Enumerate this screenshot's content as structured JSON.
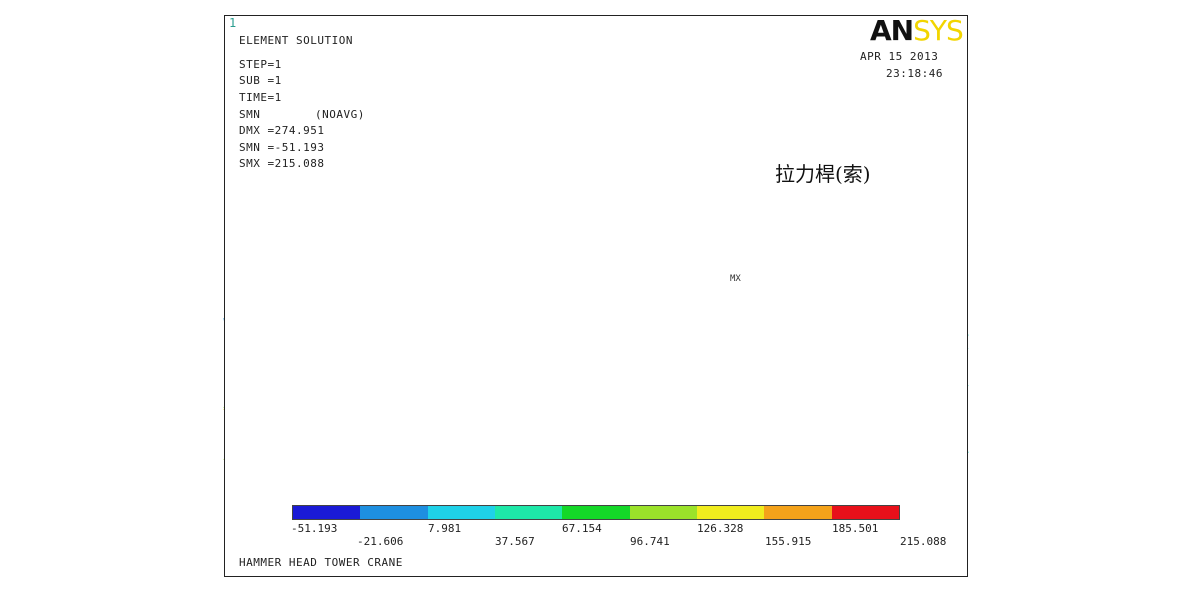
{
  "header": {
    "frame_number": "1",
    "title": "ELEMENT SOLUTION",
    "lines": [
      "STEP=1",
      "SUB =1",
      "TIME=1",
      "SMN",
      "DMX =274.951",
      "SMN =-51.193",
      "SMX =215.088"
    ],
    "smis_label": "(NOAVG)",
    "date": "APR 15 2013",
    "time": "23:18:46"
  },
  "logo": {
    "left": "AN",
    "right": "SYS"
  },
  "callout": {
    "label": "拉力桿(索)"
  },
  "mx_marker": "MX",
  "legend": {
    "colors": [
      "#1a1ad6",
      "#1e8fe0",
      "#1fd1e8",
      "#1ee8a8",
      "#14d828",
      "#9be22a",
      "#f0ec1e",
      "#f4a21a",
      "#e8101a"
    ],
    "top_labels": [
      "-51.193",
      "7.981",
      "67.154",
      "126.328",
      "185.501"
    ],
    "bottom_labels": [
      "-21.606",
      "37.567",
      "96.741",
      "155.915",
      "215.088"
    ]
  },
  "footer": {
    "title": "HAMMER HEAD TOWER CRANE"
  },
  "diagram": {
    "members": [
      {
        "p": [
          224,
          295,
          281,
          295
        ],
        "c": "#40e0d0"
      },
      {
        "p": [
          281,
          295,
          412,
          292
        ],
        "c": "#40e0d0"
      },
      {
        "p": [
          412,
          292,
          548,
          289
        ],
        "c": "#40e0d0"
      },
      {
        "p": [
          548,
          289,
          648,
          287
        ],
        "c": "#40e0d0"
      },
      {
        "p": [
          648,
          287,
          820,
          284
        ],
        "c": "#e8101a"
      },
      {
        "p": [
          820,
          284,
          968,
          283
        ],
        "c": "#40e0d0"
      },
      {
        "p": [
          820,
          284,
          968,
          245
        ],
        "c": "#40e0d0"
      },
      {
        "p": [
          224,
          386,
          968,
          373
        ],
        "c": "#3838c8"
      },
      {
        "p": [
          224,
          466,
          968,
          453
        ],
        "c": "#3838c8"
      },
      {
        "p": [
          224,
          318,
          238,
          384
        ],
        "c": "#3aa0e0"
      },
      {
        "p": [
          224,
          408,
          238,
          384
        ],
        "c": "#9be22a"
      },
      {
        "p": [
          224,
          460,
          268,
          384
        ],
        "c": "#9be22a"
      },
      {
        "p": [
          268,
          384,
          281,
          295
        ],
        "c": "#40e0d0"
      },
      {
        "p": [
          281,
          295,
          224,
          410
        ],
        "c": "#f0e01e"
      },
      {
        "p": [
          281,
          295,
          356,
          462
        ],
        "c": "#40e0d0"
      },
      {
        "p": [
          268,
          384,
          356,
          462
        ],
        "c": "#40e0d0"
      },
      {
        "p": [
          356,
          462,
          412,
          292
        ],
        "c": "#f0e01e"
      },
      {
        "p": [
          412,
          292,
          404,
          381
        ],
        "c": "#40e0d0"
      },
      {
        "p": [
          404,
          381,
          356,
          462
        ],
        "c": "#40e0d0"
      },
      {
        "p": [
          404,
          381,
          281,
          295
        ],
        "c": "#3aa0e0"
      },
      {
        "p": [
          412,
          292,
          490,
          460
        ],
        "c": "#40e0d0"
      },
      {
        "p": [
          404,
          381,
          490,
          460
        ],
        "c": "#40e0d0"
      },
      {
        "p": [
          490,
          460,
          548,
          289
        ],
        "c": "#f0e01e"
      },
      {
        "p": [
          548,
          289,
          538,
          379
        ],
        "c": "#40e0d0"
      },
      {
        "p": [
          538,
          379,
          490,
          460
        ],
        "c": "#40e0d0"
      },
      {
        "p": [
          538,
          379,
          412,
          292
        ],
        "c": "#3aa0e0"
      },
      {
        "p": [
          548,
          289,
          625,
          457
        ],
        "c": "#40e0d0"
      },
      {
        "p": [
          538,
          379,
          625,
          457
        ],
        "c": "#40e0d0"
      },
      {
        "p": [
          625,
          457,
          648,
          287
        ],
        "c": "#f0e01e"
      },
      {
        "p": [
          648,
          287,
          672,
          376
        ],
        "c": "#40e0d0"
      },
      {
        "p": [
          672,
          376,
          625,
          457
        ],
        "c": "#40e0d0"
      },
      {
        "p": [
          672,
          376,
          548,
          289
        ],
        "c": "#3aa0e0"
      },
      {
        "p": [
          648,
          287,
          760,
          455
        ],
        "c": "#40e0d0"
      },
      {
        "p": [
          672,
          376,
          760,
          455
        ],
        "c": "#40e0d0"
      },
      {
        "p": [
          760,
          455,
          820,
          284
        ],
        "c": "#f4a21a"
      },
      {
        "p": [
          820,
          284,
          806,
          375
        ],
        "c": "#40e0d0"
      },
      {
        "p": [
          806,
          375,
          760,
          455
        ],
        "c": "#40e0d0"
      },
      {
        "p": [
          806,
          375,
          648,
          287
        ],
        "c": "#40e0d0"
      },
      {
        "p": [
          820,
          284,
          895,
          452
        ],
        "c": "#40e0d0"
      },
      {
        "p": [
          806,
          375,
          895,
          452
        ],
        "c": "#40e0d0"
      },
      {
        "p": [
          820,
          284,
          940,
          373
        ],
        "c": "#9be22a"
      },
      {
        "p": [
          887,
          283,
          895,
          452
        ],
        "c": "#40e0d0"
      },
      {
        "p": [
          887,
          283,
          940,
          373
        ],
        "c": "#40e0d0"
      },
      {
        "p": [
          918,
          283,
          926,
          453
        ],
        "c": "#40e0d0"
      },
      {
        "p": [
          918,
          283,
          968,
          335
        ],
        "c": "#40e0d0"
      },
      {
        "p": [
          895,
          452,
          968,
          335
        ],
        "c": "#40e0d0"
      },
      {
        "p": [
          926,
          453,
          968,
          385
        ],
        "c": "#40e0d0"
      },
      {
        "p": [
          940,
          373,
          968,
          453
        ],
        "c": "#40e0d0"
      },
      {
        "p": [
          940,
          373,
          968,
          348
        ],
        "c": "#40e0d0"
      }
    ]
  }
}
